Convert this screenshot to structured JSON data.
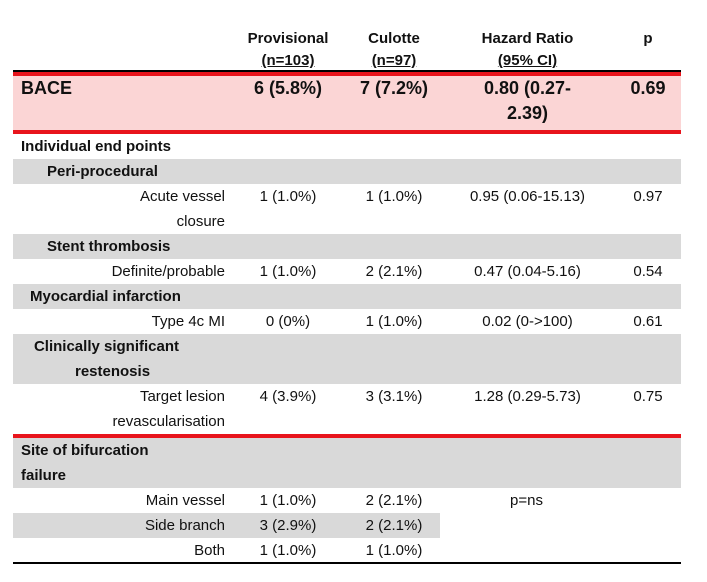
{
  "header": {
    "provisional": [
      "Provisional",
      "(n=103)"
    ],
    "culotte": [
      "Culotte",
      "(n=97)"
    ],
    "hazard_ratio": [
      "Hazard Ratio",
      "(95% CI)"
    ],
    "p": "p"
  },
  "bace": {
    "label": "BACE",
    "provisional": "6 (5.8%)",
    "culotte": "7 (7.2%)",
    "hazard_ratio": [
      "0.80 (0.27-",
      "2.39)"
    ],
    "p": "0.69"
  },
  "section_individual": "Individual end points",
  "peri": {
    "title": "Peri-procedural",
    "row": {
      "label": [
        "Acute vessel",
        "closure"
      ],
      "provisional": "1 (1.0%)",
      "culotte": "1 (1.0%)",
      "hr": "0.95 (0.06-15.13)",
      "p": "0.97"
    }
  },
  "stent": {
    "title": "Stent thrombosis",
    "row": {
      "label": "Definite/probable",
      "provisional": "1 (1.0%)",
      "culotte": "2 (2.1%)",
      "hr": "0.47 (0.04-5.16)",
      "p": "0.54"
    }
  },
  "mi": {
    "title": "Myocardial infarction",
    "row": {
      "label": "Type 4c MI",
      "provisional": "0 (0%)",
      "culotte": "1 (1.0%)",
      "hr": "0.02 (0->100)",
      "p": "0.61"
    }
  },
  "restenosis": {
    "title": [
      "Clinically significant",
      "restenosis"
    ],
    "row": {
      "label": [
        "Target lesion",
        "revascularisation"
      ],
      "provisional": "4 (3.9%)",
      "culotte": "3 (3.1%)",
      "hr": "1.28 (0.29-5.73)",
      "p": "0.75"
    }
  },
  "site": {
    "title": [
      "Site of bifurcation",
      "failure"
    ],
    "rows": [
      {
        "label": "Main vessel",
        "provisional": "1 (1.0%)",
        "culotte": "2 (2.1%)"
      },
      {
        "label": "Side branch",
        "provisional": "3 (2.9%)",
        "culotte": "2 (2.1%)"
      },
      {
        "label": "Both",
        "provisional": "1 (1.0%)",
        "culotte": "1 (1.0%)"
      }
    ],
    "p_note": "p=ns"
  }
}
